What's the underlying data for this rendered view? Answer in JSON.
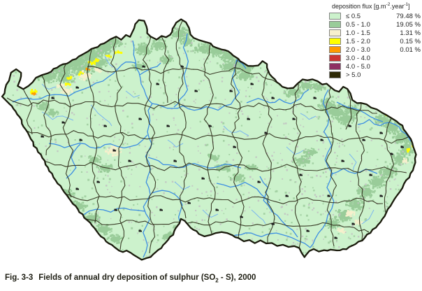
{
  "figure": {
    "caption": {
      "fig_label": "Fig. 3-3",
      "text_pre": "Fields of annual dry deposition of sulphur (SO",
      "subscript": "2",
      "text_post": " - S), 2000"
    }
  },
  "legend": {
    "title": {
      "pre": "deposition flux [g.m",
      "sup1": "-2",
      "mid": ".year",
      "sup2": "-1",
      "post": "]"
    },
    "items": [
      {
        "range": "≤ 0.5",
        "percent": "79.48 %",
        "color": "#ccf2cc"
      },
      {
        "range": "0.5 - 1.0",
        "percent": "19.05 %",
        "color": "#99cc99"
      },
      {
        "range": "1.0 - 1.5",
        "percent": "1.31 %",
        "color": "#f6f0cd"
      },
      {
        "range": "1.5 - 2.0",
        "percent": "0.15 %",
        "color": "#ffff00"
      },
      {
        "range": "2.0 - 3.0",
        "percent": "0.01 %",
        "color": "#ff9900"
      },
      {
        "range": "3.0 - 4.0",
        "percent": "",
        "color": "#cc3333"
      },
      {
        "range": "4.0 - 5.0",
        "percent": "",
        "color": "#8e2f63"
      },
      {
        "range": "> 5.0",
        "percent": "",
        "color": "#2e2a06"
      }
    ]
  },
  "map": {
    "region": "Czech Republic",
    "colors": {
      "background": "#ffffff",
      "base_fill": "#ccf2cc",
      "sage_patch": "#99cc99",
      "cream_patch": "#f6f0cd",
      "yellow_patch": "#ffff00",
      "orange_patch": "#ff9900",
      "river": "#3c8ee2",
      "river_light": "#7ab6ef",
      "country_border": "#1a1a0c",
      "district_border": "#33331f",
      "speckle_grey": "#c2c2c2",
      "town_mark": "#1c1c1c"
    }
  }
}
